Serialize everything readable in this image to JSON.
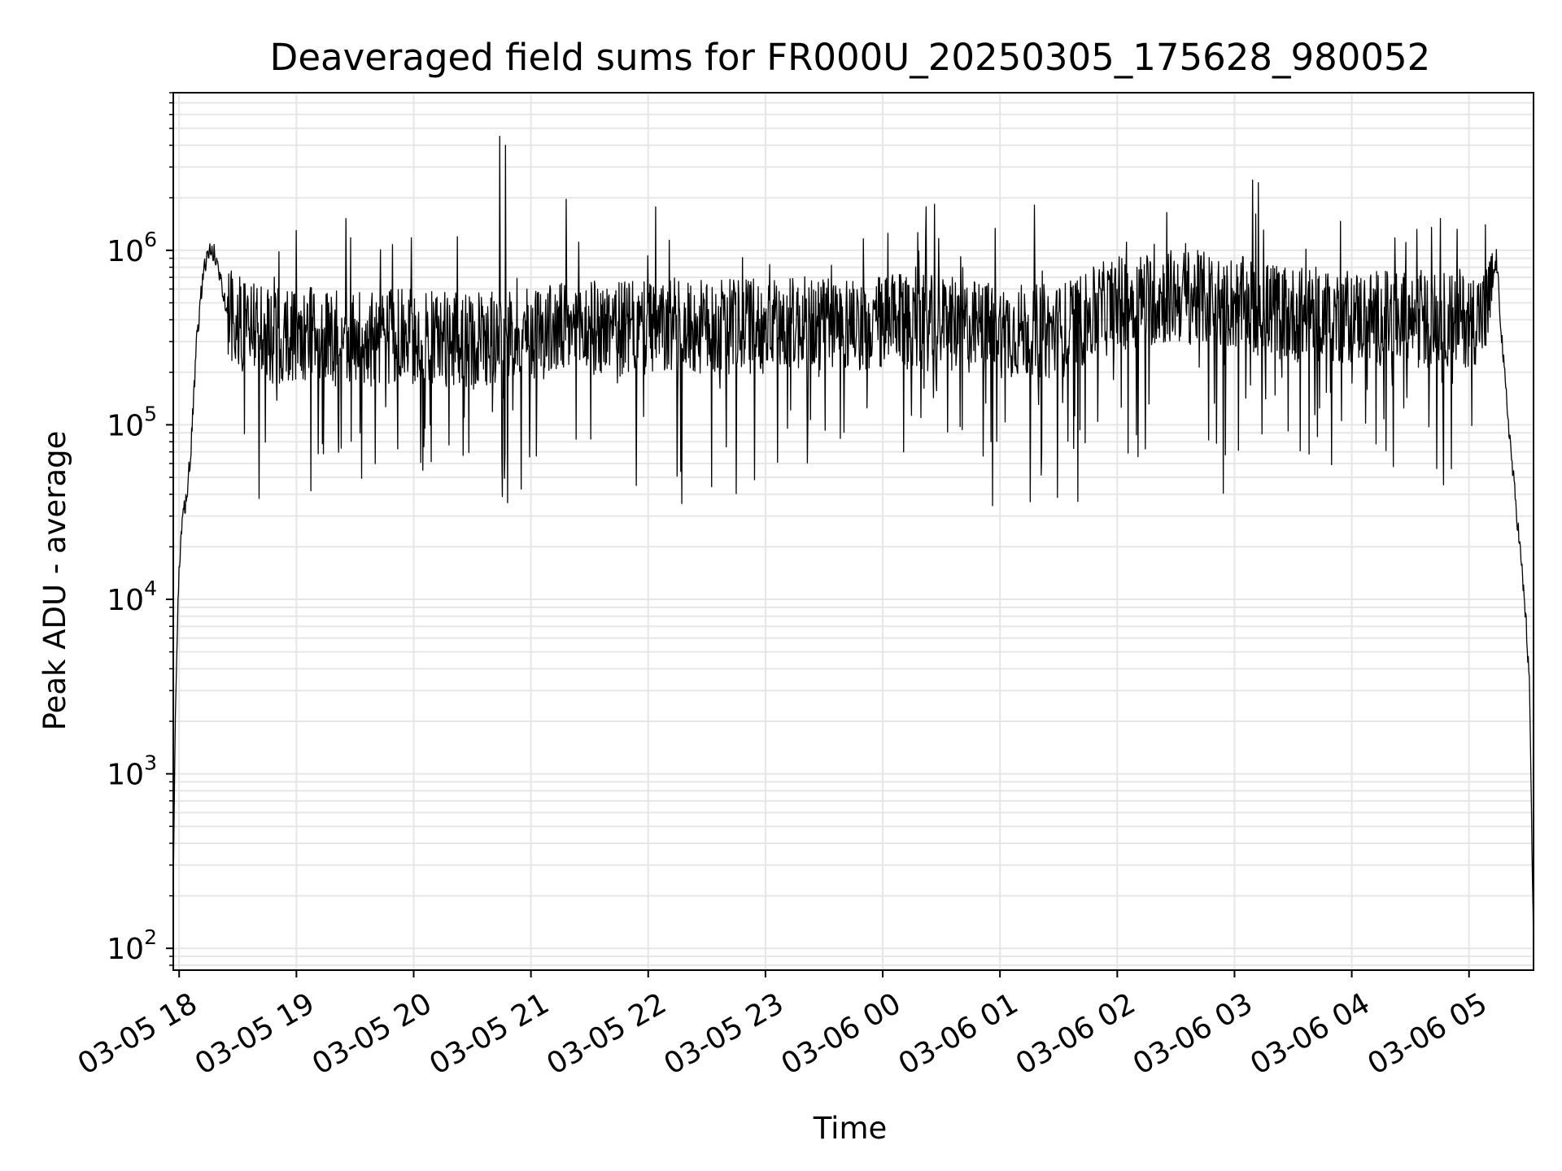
{
  "chart_data": {
    "type": "line",
    "title": "Deaveraged field sums for FR000U_20250305_175628_980052",
    "xlabel": "Time",
    "ylabel": "Peak ADU - average",
    "x_range": [
      "2025-03-05 17:57",
      "2025-03-06 05:33"
    ],
    "ylim": [
      75,
      8000000
    ],
    "yscale": "log",
    "grid": true,
    "line_color": "#000000",
    "grid_color": "#e6e6e6",
    "x_ticks": [
      {
        "value": "2025-03-05 18:00",
        "label": "03-05 18"
      },
      {
        "value": "2025-03-05 19:00",
        "label": "03-05 19"
      },
      {
        "value": "2025-03-05 20:00",
        "label": "03-05 20"
      },
      {
        "value": "2025-03-05 21:00",
        "label": "03-05 21"
      },
      {
        "value": "2025-03-05 22:00",
        "label": "03-05 22"
      },
      {
        "value": "2025-03-05 23:00",
        "label": "03-05 23"
      },
      {
        "value": "2025-03-06 00:00",
        "label": "03-06 00"
      },
      {
        "value": "2025-03-06 01:00",
        "label": "03-06 01"
      },
      {
        "value": "2025-03-06 02:00",
        "label": "03-06 02"
      },
      {
        "value": "2025-03-06 03:00",
        "label": "03-06 03"
      },
      {
        "value": "2025-03-06 04:00",
        "label": "03-06 04"
      },
      {
        "value": "2025-03-06 05:00",
        "label": "03-06 05"
      }
    ],
    "y_ticks": [
      {
        "value": 100,
        "base": "10",
        "exp": "2"
      },
      {
        "value": 1000,
        "base": "10",
        "exp": "3"
      },
      {
        "value": 10000,
        "base": "10",
        "exp": "4"
      },
      {
        "value": 100000,
        "base": "10",
        "exp": "5"
      },
      {
        "value": 1000000,
        "base": "10",
        "exp": "6"
      }
    ],
    "series": [
      {
        "x": [
          "2025-03-05 17:57",
          "2025-03-05 17:58",
          "2025-03-05 17:59",
          "2025-03-05 18:00",
          "2025-03-05 18:02",
          "2025-03-05 18:04",
          "2025-03-05 18:06",
          "2025-03-05 18:09",
          "2025-03-05 18:12",
          "2025-03-05 18:15",
          "2025-03-05 18:18",
          "2025-03-05 18:21",
          "2025-03-05 18:24",
          "2025-03-05 18:27",
          "2025-03-05 18:30",
          "2025-03-05 18:35",
          "2025-03-05 18:45",
          "2025-03-05 19:00",
          "2025-03-05 19:30",
          "2025-03-05 20:00",
          "2025-03-05 20:30",
          "2025-03-05 21:00",
          "2025-03-05 21:30",
          "2025-03-05 22:00",
          "2025-03-05 22:30",
          "2025-03-05 23:00",
          "2025-03-05 23:30",
          "2025-03-06 00:00",
          "2025-03-06 00:30",
          "2025-03-06 01:00",
          "2025-03-06 01:30",
          "2025-03-06 02:00",
          "2025-03-06 02:30",
          "2025-03-06 03:00",
          "2025-03-06 03:30",
          "2025-03-06 04:00",
          "2025-03-06 04:30",
          "2025-03-06 05:00",
          "2025-03-06 05:10",
          "2025-03-06 05:14",
          "2025-03-06 05:18",
          "2025-03-06 05:22",
          "2025-03-06 05:26",
          "2025-03-06 05:29",
          "2025-03-06 05:31",
          "2025-03-06 05:33"
        ],
        "y": [
          220,
          2000,
          6000,
          15000,
          30000,
          40000,
          70000,
          300000,
          700000,
          1000000,
          950000,
          700000,
          500000,
          420000,
          380000,
          350000,
          320000,
          330000,
          310000,
          320000,
          300000,
          340000,
          360000,
          350000,
          360000,
          370000,
          380000,
          390000,
          380000,
          350000,
          340000,
          500000,
          550000,
          500000,
          430000,
          420000,
          400000,
          400000,
          450000,
          900000,
          200000,
          60000,
          20000,
          8000,
          3000,
          100
        ],
        "noise": "high-frequency fluctuations between about 4e4 and 1e6 during the plateau, with spikes up to about 4.5e6 near 03-05 20:45 and dips down to about 2.7e4"
      }
    ]
  }
}
